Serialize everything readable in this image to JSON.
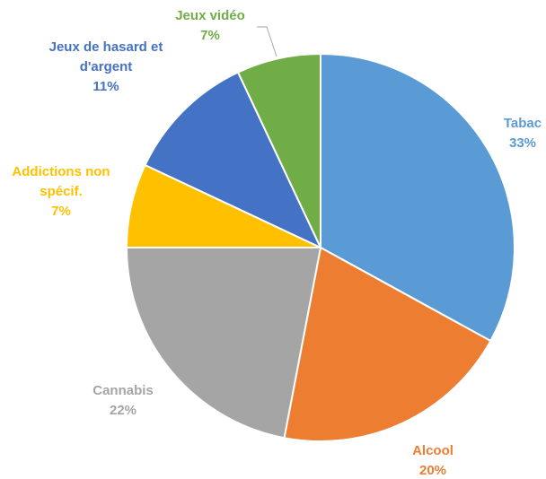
{
  "chart_data": {
    "type": "pie",
    "slices": [
      {
        "label_lines": [
          "Tabac"
        ],
        "value": 33,
        "value_label": "33%",
        "color": "#5B9BD5"
      },
      {
        "label_lines": [
          "Alcool"
        ],
        "value": 20,
        "value_label": "20%",
        "color": "#ED7D31"
      },
      {
        "label_lines": [
          "Cannabis"
        ],
        "value": 22,
        "value_label": "22%",
        "color": "#A5A5A5"
      },
      {
        "label_lines": [
          "Addictions non",
          "spécif."
        ],
        "value": 7,
        "value_label": "7%",
        "color": "#FFC000"
      },
      {
        "label_lines": [
          "Jeux de hasard et",
          "d'argent"
        ],
        "value": 11,
        "value_label": "11%",
        "color": "#4472C4"
      },
      {
        "label_lines": [
          "Jeux vidéo"
        ],
        "value": 7,
        "value_label": "7%",
        "color": "#70AD47"
      }
    ],
    "start_angle_deg": 0,
    "direction": "clockwise"
  }
}
